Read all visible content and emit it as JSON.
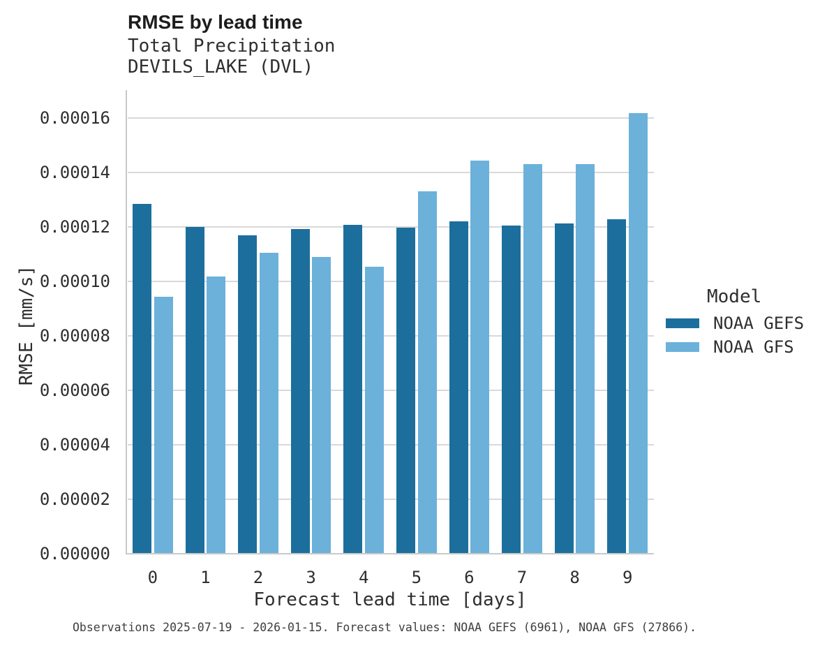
{
  "page": {
    "title": "RMSE by lead time",
    "subtitle_line1": "Total Precipitation",
    "subtitle_line2": "DEVILS_LAKE (DVL)",
    "caption": "Observations 2025-07-19 - 2026-01-15. Forecast values: NOAA GEFS (6961), NOAA GFS (27866)."
  },
  "legend": {
    "title": "Model",
    "entries": [
      {
        "label": "NOAA GEFS",
        "color": "#1c6f9c"
      },
      {
        "label": "NOAA GFS",
        "color": "#6cb1da"
      }
    ]
  },
  "chart_data": {
    "type": "bar",
    "title": "RMSE by lead time",
    "subtitle": [
      "Total Precipitation",
      "DEVILS_LAKE (DVL)"
    ],
    "xlabel": "Forecast lead time [days]",
    "ylabel": "RMSE [mm/s]",
    "categories": [
      "0",
      "1",
      "2",
      "3",
      "4",
      "5",
      "6",
      "7",
      "8",
      "9"
    ],
    "series": [
      {
        "name": "NOAA GEFS",
        "color": "#1c6f9c",
        "values": [
          0.0001286,
          0.0001201,
          0.000117,
          0.0001192,
          0.0001207,
          0.0001198,
          0.0001221,
          0.0001206,
          0.0001213,
          0.0001228
        ]
      },
      {
        "name": "NOAA GFS",
        "color": "#6cb1da",
        "values": [
          9.43e-05,
          0.0001019,
          0.0001105,
          0.000109,
          0.0001055,
          0.0001332,
          0.0001445,
          0.000143,
          0.0001431,
          0.0001619
        ]
      }
    ],
    "ylim": [
      0,
      0.0001703
    ],
    "yticks": [
      0.0,
      2e-05,
      4e-05,
      6e-05,
      8e-05,
      0.0001,
      0.00012,
      0.00014,
      0.00016
    ],
    "ytick_decimals": 5,
    "grid": true,
    "legend_title": "Model",
    "legend_position": "right",
    "caption": "Observations 2025-07-19 - 2026-01-15. Forecast values: NOAA GEFS (6961), NOAA GFS (27866)."
  }
}
